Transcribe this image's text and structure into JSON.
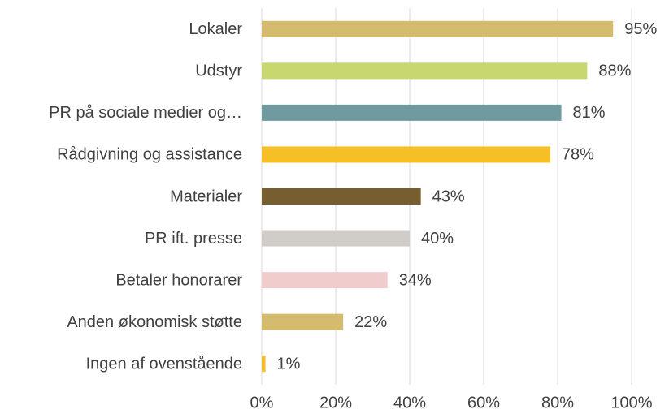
{
  "chart_data": {
    "type": "bar",
    "orientation": "horizontal",
    "categories": [
      "Lokaler",
      "Udstyr",
      "PR på sociale medier og…",
      "Rådgivning og assistance",
      "Materialer",
      "PR ift. presse",
      "Betaler honorarer",
      "Anden økonomisk støtte",
      "Ingen af ovenstående"
    ],
    "values": [
      95,
      88,
      81,
      78,
      43,
      40,
      34,
      22,
      1
    ],
    "value_labels": [
      "95%",
      "88%",
      "81%",
      "78%",
      "43%",
      "40%",
      "34%",
      "22%",
      "1%"
    ],
    "colors": [
      "#d4bb6e",
      "#c9d86e",
      "#6e9aa0",
      "#f5bf26",
      "#765e30",
      "#d0ccc7",
      "#f0cccc",
      "#d4bb6e",
      "#f5bf26"
    ],
    "xlim": [
      0,
      100
    ],
    "xticks": [
      {
        "value": 0,
        "label": "0%"
      },
      {
        "value": 20,
        "label": "20%"
      },
      {
        "value": 40,
        "label": "40%"
      },
      {
        "value": 60,
        "label": "60%"
      },
      {
        "value": 80,
        "label": "80%"
      },
      {
        "value": 100,
        "label": "100%"
      }
    ],
    "grid": true
  }
}
